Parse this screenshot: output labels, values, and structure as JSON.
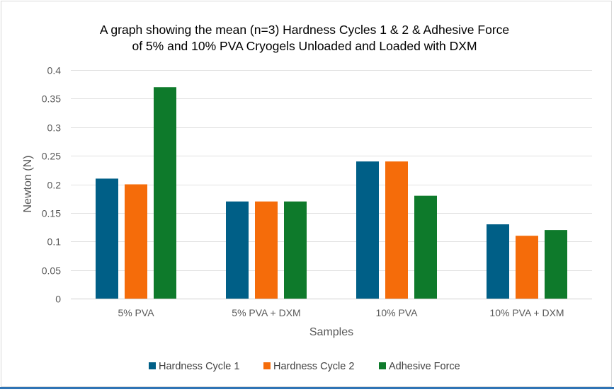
{
  "chart_data": {
    "type": "bar",
    "title_lines": [
      "A graph showing the mean (n=3) Hardness Cycles 1 & 2 & Adhesive Force",
      "of 5% and 10% PVA Cryogels Unloaded and Loaded with DXM"
    ],
    "xlabel": "Samples",
    "ylabel": "Newton (N)",
    "ylim": [
      0,
      0.4
    ],
    "yticks": [
      0,
      0.05,
      0.1,
      0.15,
      0.2,
      0.25,
      0.3,
      0.35,
      0.4
    ],
    "ytick_labels": [
      "0",
      "0.05",
      "0.1",
      "0.15",
      "0.2",
      "0.25",
      "0.3",
      "0.35",
      "0.4"
    ],
    "grid": true,
    "legend_position": "bottom",
    "categories": [
      "5% PVA",
      "5% PVA + DXM",
      "10% PVA",
      "10% PVA + DXM"
    ],
    "series": [
      {
        "name": "Hardness Cycle 1",
        "color": "#005f87",
        "values": [
          0.21,
          0.17,
          0.24,
          0.13
        ]
      },
      {
        "name": "Hardness Cycle 2",
        "color": "#f56c0a",
        "values": [
          0.2,
          0.17,
          0.24,
          0.11
        ]
      },
      {
        "name": "Adhesive Force",
        "color": "#0e7a2b",
        "values": [
          0.37,
          0.17,
          0.18,
          0.12
        ]
      }
    ]
  }
}
